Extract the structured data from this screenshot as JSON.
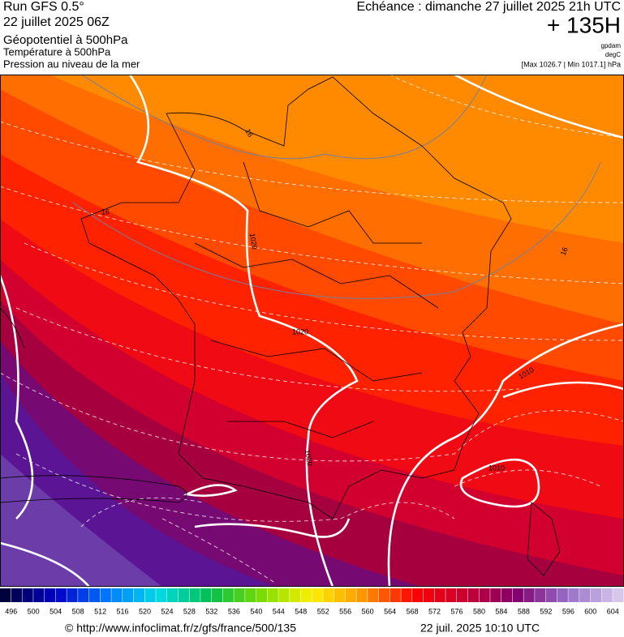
{
  "header": {
    "run": "Run GFS 0.5°",
    "run_date": "22 juillet 2025 06Z",
    "field_1": "Géopotentiel à 500hPa",
    "field_2": "Température à 500hPa",
    "field_3": "Pression au niveau de la mer",
    "valid_time": "Echéance : dimanche 27 juillet 2025 21h UTC",
    "lead": "+ 135H",
    "unit_1": "gpdam",
    "unit_2": "degC",
    "range": "[Max 1026.7 | Min 1017.1] hPa"
  },
  "map": {
    "contour_labels": [
      "1020",
      "1020",
      "1020",
      "1010",
      "1010",
      "16",
      "16",
      "16"
    ]
  },
  "scale": {
    "labels": [
      496,
      500,
      504,
      508,
      512,
      516,
      520,
      524,
      528,
      532,
      536,
      540,
      544,
      548,
      552,
      556,
      560,
      564,
      568,
      572,
      576,
      580,
      584,
      588,
      592,
      596,
      600,
      604
    ]
  },
  "footer": {
    "source": "© http://www.infoclimat.fr/z/gfs/france/500/135",
    "generated": "22 juil. 2025 10:10 UTC"
  }
}
